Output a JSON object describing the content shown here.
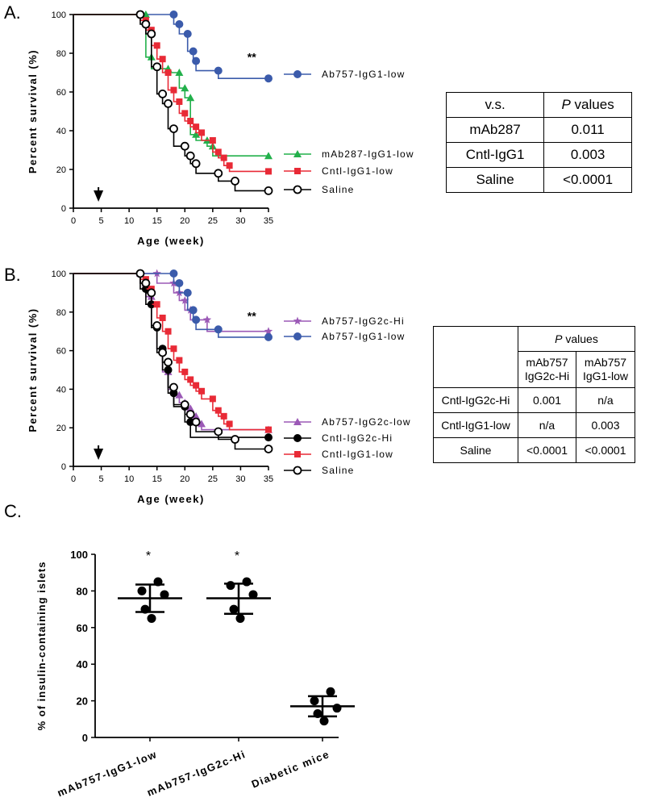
{
  "panel_labels": [
    "A.",
    "B.",
    "C."
  ],
  "chart_data": [
    {
      "type": "line",
      "panel": "A.",
      "xlabel": "Age (week)",
      "ylabel": "Percent survival (%)",
      "xlim": [
        0,
        35
      ],
      "ylim": [
        0,
        100
      ],
      "xticks": [
        "0",
        "5",
        "10",
        "15",
        "20",
        "25",
        "30",
        "35"
      ],
      "yticks": [
        "0",
        "20",
        "40",
        "60",
        "80",
        "100"
      ],
      "annotation": "**",
      "arrow_at_week": 4.5,
      "series": [
        {
          "name": "Ab757-IgG1-low",
          "color": "#3b5bab",
          "marker": "circle-filled",
          "steps": [
            [
              0,
              100
            ],
            [
              18,
              100
            ],
            [
              18,
              95
            ],
            [
              19,
              95
            ],
            [
              19,
              90
            ],
            [
              20.5,
              90
            ],
            [
              20.5,
              81
            ],
            [
              21.5,
              81
            ],
            [
              21.5,
              76
            ],
            [
              22,
              76
            ],
            [
              22,
              71
            ],
            [
              26,
              71
            ],
            [
              26,
              67
            ],
            [
              35,
              67
            ]
          ]
        },
        {
          "name": "mAb287-IgG1-low",
          "color": "#22b04b",
          "marker": "triangle",
          "steps": [
            [
              0,
              100
            ],
            [
              13,
              100
            ],
            [
              13,
              78
            ],
            [
              14,
              78
            ],
            [
              14,
              72
            ],
            [
              17,
              72
            ],
            [
              17,
              70
            ],
            [
              19,
              70
            ],
            [
              19,
              62
            ],
            [
              20,
              62
            ],
            [
              20,
              57
            ],
            [
              21,
              57
            ],
            [
              21,
              38
            ],
            [
              22,
              38
            ],
            [
              22,
              35
            ],
            [
              24,
              35
            ],
            [
              24,
              32
            ],
            [
              25,
              32
            ],
            [
              25,
              27
            ],
            [
              35,
              27
            ]
          ]
        },
        {
          "name": "Cntl-IgG1-low",
          "color": "#e82a36",
          "marker": "square",
          "steps": [
            [
              0,
              100
            ],
            [
              12,
              100
            ],
            [
              12,
              97
            ],
            [
              13,
              97
            ],
            [
              13,
              92
            ],
            [
              14,
              92
            ],
            [
              14,
              84
            ],
            [
              15,
              84
            ],
            [
              15,
              77
            ],
            [
              16,
              77
            ],
            [
              16,
              70
            ],
            [
              17,
              70
            ],
            [
              17,
              61
            ],
            [
              18,
              61
            ],
            [
              18,
              55
            ],
            [
              19,
              55
            ],
            [
              19,
              49
            ],
            [
              20,
              49
            ],
            [
              20,
              45
            ],
            [
              21,
              45
            ],
            [
              21,
              42
            ],
            [
              22,
              42
            ],
            [
              22,
              39
            ],
            [
              23,
              39
            ],
            [
              23,
              35
            ],
            [
              25,
              35
            ],
            [
              25,
              29
            ],
            [
              26,
              29
            ],
            [
              26,
              26
            ],
            [
              27,
              26
            ],
            [
              27,
              22
            ],
            [
              28,
              22
            ],
            [
              28,
              19
            ],
            [
              35,
              19
            ]
          ]
        },
        {
          "name": "Saline",
          "color": "#000000",
          "marker": "circle-open",
          "steps": [
            [
              0,
              100
            ],
            [
              12,
              100
            ],
            [
              12,
              95
            ],
            [
              13,
              95
            ],
            [
              13,
              90
            ],
            [
              14,
              90
            ],
            [
              14,
              73
            ],
            [
              15,
              73
            ],
            [
              15,
              59
            ],
            [
              16,
              59
            ],
            [
              16,
              54
            ],
            [
              17,
              54
            ],
            [
              17,
              41
            ],
            [
              18,
              41
            ],
            [
              18,
              32
            ],
            [
              20,
              32
            ],
            [
              20,
              27
            ],
            [
              21,
              27
            ],
            [
              21,
              23
            ],
            [
              22,
              23
            ],
            [
              22,
              18
            ],
            [
              26,
              18
            ],
            [
              26,
              14
            ],
            [
              29,
              14
            ],
            [
              29,
              9
            ],
            [
              35,
              9
            ]
          ]
        }
      ]
    },
    {
      "type": "line",
      "panel": "B.",
      "xlabel": "Age (week)",
      "ylabel": "Percent survival (%)",
      "xlim": [
        0,
        35
      ],
      "ylim": [
        0,
        100
      ],
      "xticks": [
        "0",
        "5",
        "10",
        "15",
        "20",
        "25",
        "30",
        "35"
      ],
      "yticks": [
        "0",
        "20",
        "40",
        "60",
        "80",
        "100"
      ],
      "annotation": "**",
      "arrow_at_week": 4.5,
      "series": [
        {
          "name": "Ab757-IgG2c-Hi",
          "color": "#9b59b6",
          "marker": "star",
          "steps": [
            [
              0,
              100
            ],
            [
              15,
              100
            ],
            [
              15,
              95
            ],
            [
              18,
              95
            ],
            [
              18,
              90
            ],
            [
              19,
              90
            ],
            [
              19,
              86
            ],
            [
              20,
              86
            ],
            [
              20,
              81
            ],
            [
              21,
              81
            ],
            [
              21,
              76
            ],
            [
              24,
              76
            ],
            [
              24,
              70
            ],
            [
              35,
              70
            ]
          ]
        },
        {
          "name": "Ab757-IgG1-low",
          "color": "#3b5bab",
          "marker": "circle-filled",
          "steps": [
            [
              0,
              100
            ],
            [
              18,
              100
            ],
            [
              18,
              95
            ],
            [
              19,
              95
            ],
            [
              19,
              90
            ],
            [
              20.5,
              90
            ],
            [
              20.5,
              81
            ],
            [
              21.5,
              81
            ],
            [
              21.5,
              76
            ],
            [
              22,
              76
            ],
            [
              22,
              71
            ],
            [
              26,
              71
            ],
            [
              26,
              67
            ],
            [
              35,
              67
            ]
          ]
        },
        {
          "name": "Ab757-IgG2c-low",
          "color": "#9b59b6",
          "marker": "triangle",
          "steps": [
            [
              0,
              100
            ],
            [
              12,
              100
            ],
            [
              12,
              95
            ],
            [
              13,
              95
            ],
            [
              13,
              88
            ],
            [
              14,
              88
            ],
            [
              14,
              73
            ],
            [
              15,
              73
            ],
            [
              15,
              61
            ],
            [
              16,
              61
            ],
            [
              16,
              49
            ],
            [
              17,
              49
            ],
            [
              17,
              40
            ],
            [
              18,
              40
            ],
            [
              18,
              37
            ],
            [
              19,
              37
            ],
            [
              19,
              33
            ],
            [
              20,
              33
            ],
            [
              20,
              30
            ],
            [
              21,
              30
            ],
            [
              21,
              26
            ],
            [
              22,
              26
            ],
            [
              22,
              22
            ],
            [
              23,
              22
            ],
            [
              23,
              19
            ],
            [
              35,
              19
            ]
          ]
        },
        {
          "name": "Cntl-IgG2c-Hi",
          "color": "#000000",
          "marker": "circle-filled",
          "steps": [
            [
              0,
              100
            ],
            [
              12,
              100
            ],
            [
              12,
              92
            ],
            [
              13,
              92
            ],
            [
              13,
              84
            ],
            [
              14,
              84
            ],
            [
              14,
              72
            ],
            [
              15,
              72
            ],
            [
              15,
              61
            ],
            [
              16,
              61
            ],
            [
              16,
              50
            ],
            [
              17,
              50
            ],
            [
              17,
              38
            ],
            [
              18,
              38
            ],
            [
              18,
              31
            ],
            [
              20,
              31
            ],
            [
              20,
              23
            ],
            [
              21,
              23
            ],
            [
              21,
              15
            ],
            [
              35,
              15
            ]
          ]
        },
        {
          "name": "Cntl-IgG1-low",
          "color": "#e82a36",
          "marker": "square",
          "steps": [
            [
              0,
              100
            ],
            [
              12,
              100
            ],
            [
              12,
              97
            ],
            [
              13,
              97
            ],
            [
              13,
              92
            ],
            [
              14,
              92
            ],
            [
              14,
              84
            ],
            [
              15,
              84
            ],
            [
              15,
              77
            ],
            [
              16,
              77
            ],
            [
              16,
              70
            ],
            [
              17,
              70
            ],
            [
              17,
              61
            ],
            [
              18,
              61
            ],
            [
              18,
              55
            ],
            [
              19,
              55
            ],
            [
              19,
              49
            ],
            [
              20,
              49
            ],
            [
              20,
              45
            ],
            [
              21,
              45
            ],
            [
              21,
              42
            ],
            [
              22,
              42
            ],
            [
              22,
              39
            ],
            [
              23,
              39
            ],
            [
              23,
              35
            ],
            [
              25,
              35
            ],
            [
              25,
              29
            ],
            [
              26,
              29
            ],
            [
              26,
              26
            ],
            [
              27,
              26
            ],
            [
              27,
              22
            ],
            [
              28,
              22
            ],
            [
              28,
              19
            ],
            [
              35,
              19
            ]
          ]
        },
        {
          "name": "Saline",
          "color": "#000000",
          "marker": "circle-open",
          "steps": [
            [
              0,
              100
            ],
            [
              12,
              100
            ],
            [
              12,
              95
            ],
            [
              13,
              95
            ],
            [
              13,
              90
            ],
            [
              14,
              90
            ],
            [
              14,
              73
            ],
            [
              15,
              73
            ],
            [
              15,
              59
            ],
            [
              16,
              59
            ],
            [
              16,
              54
            ],
            [
              17,
              54
            ],
            [
              17,
              41
            ],
            [
              18,
              41
            ],
            [
              18,
              32
            ],
            [
              20,
              32
            ],
            [
              20,
              27
            ],
            [
              21,
              27
            ],
            [
              21,
              23
            ],
            [
              22,
              23
            ],
            [
              22,
              18
            ],
            [
              26,
              18
            ],
            [
              26,
              14
            ],
            [
              29,
              14
            ],
            [
              29,
              9
            ],
            [
              35,
              9
            ]
          ]
        }
      ]
    },
    {
      "type": "scatter",
      "panel": "C.",
      "ylabel": "% of insulin-containing islets",
      "ylim": [
        0,
        100
      ],
      "yticks": [
        "0",
        "20",
        "40",
        "60",
        "80",
        "100"
      ],
      "categories": [
        "mAb757-IgG1-low",
        "mAb757-IgG2c-Hi",
        "Diabetic mice"
      ],
      "annotations": [
        "*",
        "*",
        ""
      ],
      "groups": [
        {
          "points": [
            85,
            80,
            78,
            70,
            65
          ],
          "mean": 76,
          "sd_low": 68.5,
          "sd_high": 83.5
        },
        {
          "points": [
            85,
            83,
            78,
            70,
            65
          ],
          "mean": 76,
          "sd_low": 67.5,
          "sd_high": 84
        },
        {
          "points": [
            25,
            20,
            16,
            13,
            9
          ],
          "mean": 17,
          "sd_low": 11.5,
          "sd_high": 22.5
        }
      ]
    }
  ],
  "tables": {
    "A": {
      "header": [
        "v.s.",
        "P values"
      ],
      "rows": [
        [
          "mAb287",
          "0.011"
        ],
        [
          "Cntl-IgG1",
          "0.003"
        ],
        [
          "Saline",
          "<0.0001"
        ]
      ]
    },
    "B": {
      "header": "P values",
      "subheaders": [
        [
          "mAb757",
          "IgG2c-Hi"
        ],
        [
          "mAb757",
          "IgG1-low"
        ]
      ],
      "rows": [
        [
          "Cntl-IgG2c-Hi",
          "0.001",
          "n/a"
        ],
        [
          "Cntl-IgG1-low",
          "n/a",
          "0.003"
        ],
        [
          "Saline",
          "<0.0001",
          "<0.0001"
        ]
      ]
    }
  }
}
